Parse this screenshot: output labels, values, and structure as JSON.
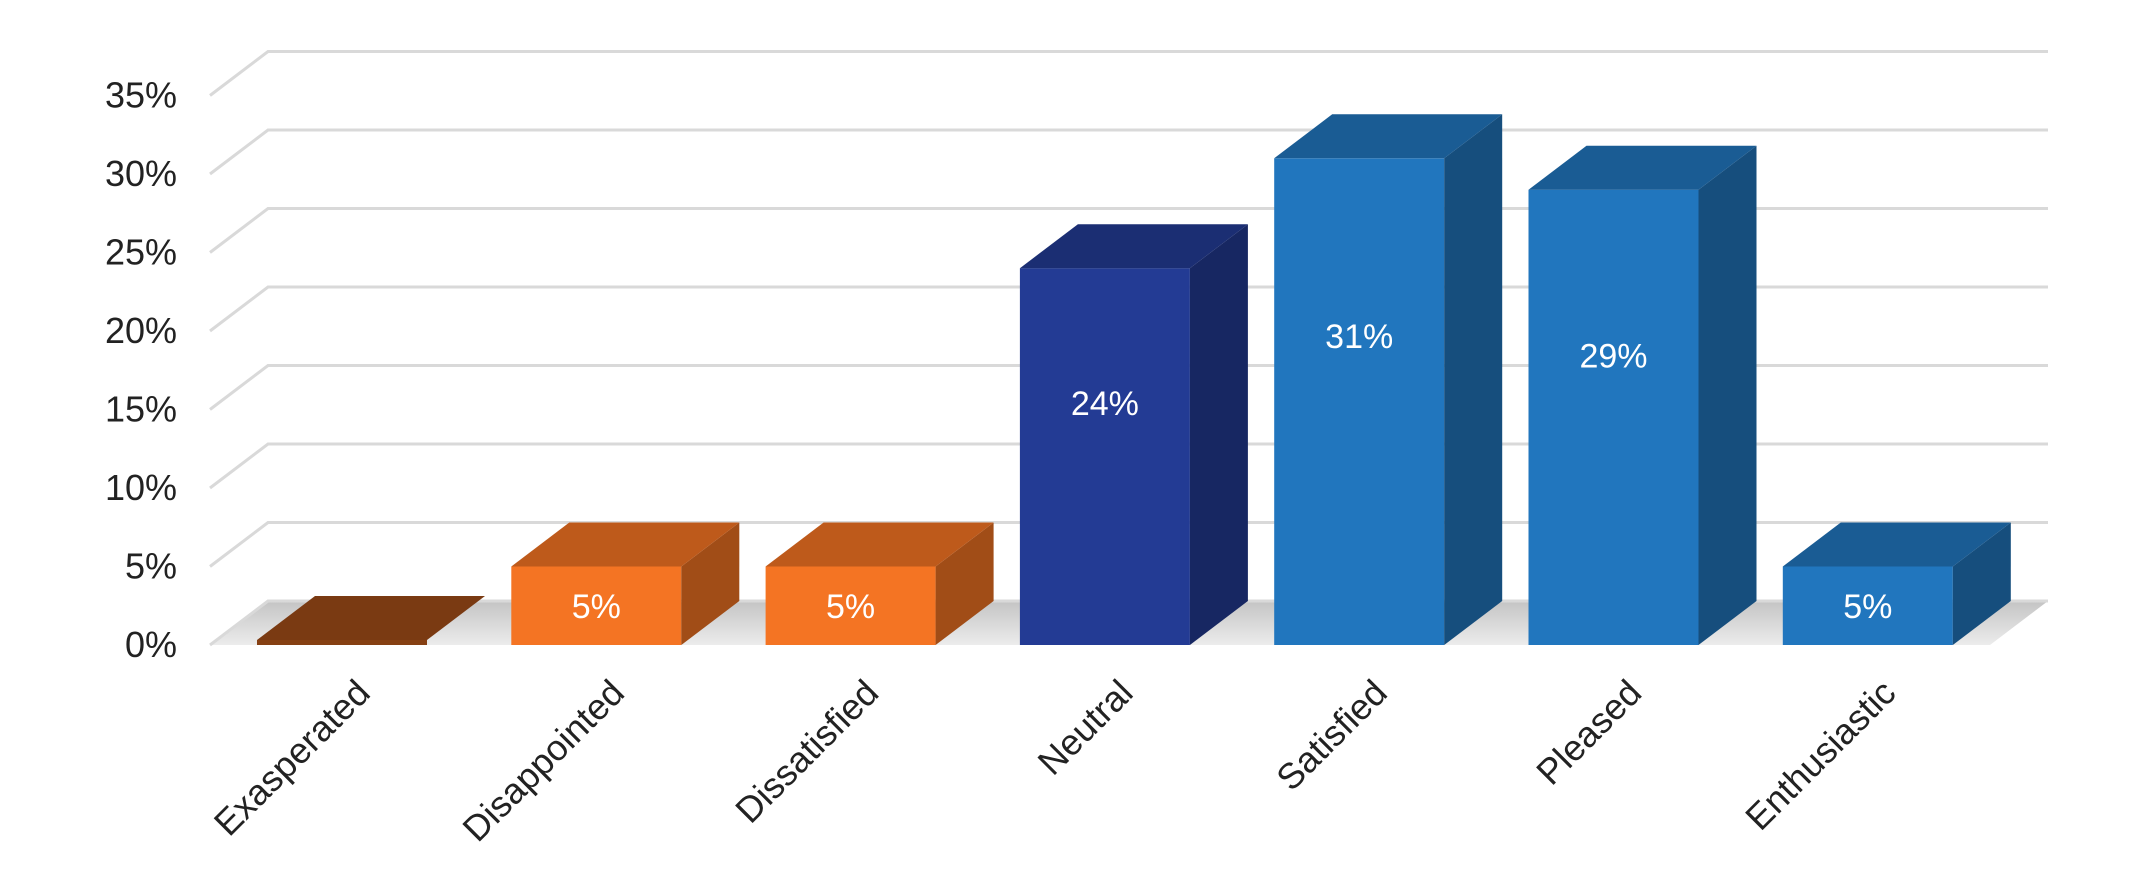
{
  "chart_data": {
    "type": "bar",
    "categories": [
      "Exasperated",
      "Disappointed",
      "Dissatisfied",
      "Neutral",
      "Satisfied",
      "Pleased",
      "Enthusiastic"
    ],
    "values": [
      0,
      5,
      5,
      24,
      31,
      29,
      5
    ],
    "data_labels": [
      "",
      "5%",
      "5%",
      "24%",
      "31%",
      "29%",
      "5%"
    ],
    "yticks": [
      "0%",
      "5%",
      "10%",
      "15%",
      "20%",
      "25%",
      "30%",
      "35%"
    ],
    "ytick_values": [
      0,
      5,
      10,
      15,
      20,
      25,
      30,
      35
    ],
    "ylim": [
      0,
      35
    ],
    "title": "",
    "xlabel": "",
    "ylabel": "",
    "grid": true,
    "legend": "none",
    "colors": {
      "Exasperated": "#F47423",
      "Disappointed": "#F47423",
      "Dissatisfied": "#F47423",
      "Neutral": "#233B94",
      "Satisfied": "#2176BE",
      "Pleased": "#2176BE",
      "Enthusiastic": "#2176BE"
    },
    "gridline_color": "#d9d9d9"
  }
}
